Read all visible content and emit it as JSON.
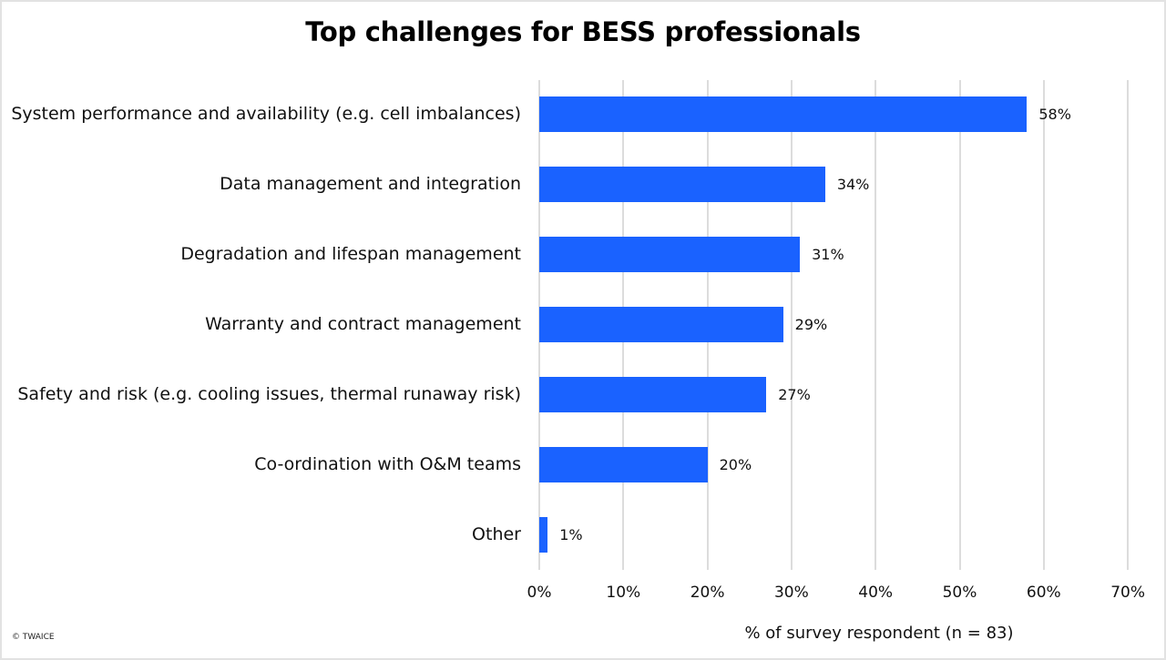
{
  "chart_data": {
    "type": "bar",
    "orientation": "horizontal",
    "title": "Top challenges for BESS professionals",
    "xlabel": "% of survey respondent  (n = 83)",
    "ylabel": "",
    "categories": [
      "System performance and availability (e.g. cell imbalances)",
      "Data management and integration",
      "Degradation and lifespan management",
      "Warranty and contract management",
      "Safety and risk (e.g. cooling issues, thermal runaway risk)",
      "Co-ordination with O&M teams",
      "Other"
    ],
    "values": [
      58,
      34,
      31,
      29,
      27,
      20,
      1
    ],
    "value_labels": [
      "58%",
      "34%",
      "31%",
      "29%",
      "27%",
      "20%",
      "1%"
    ],
    "xlim": [
      0,
      70
    ],
    "xticks": [
      "0%",
      "10%",
      "20%",
      "30%",
      "40%",
      "50%",
      "60%",
      "70%"
    ],
    "grid": "vertical",
    "legend": null,
    "bar_color": "#1a62ff"
  },
  "footer": {
    "copyright": "© TWAICE"
  }
}
